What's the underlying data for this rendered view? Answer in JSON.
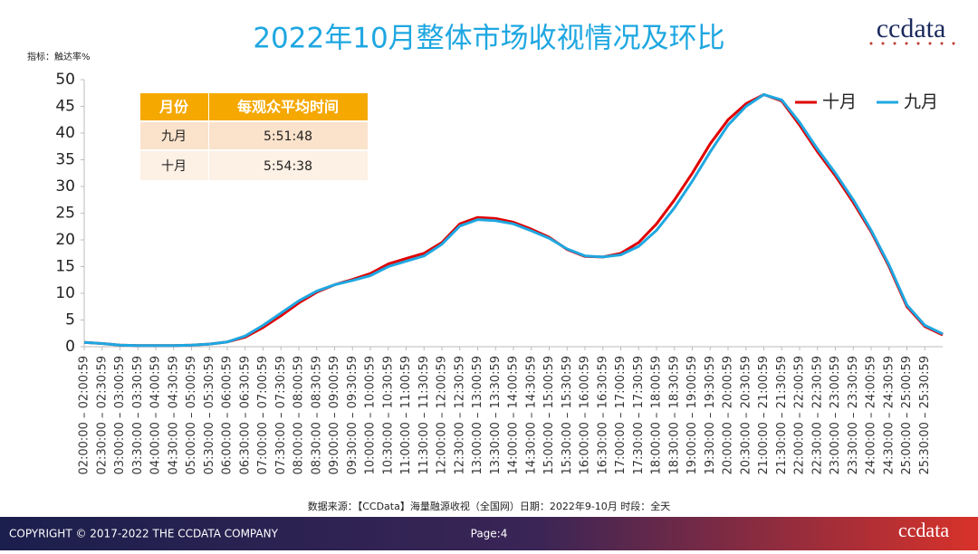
{
  "chart_data": {
    "type": "line",
    "title": "2022年10月整体市场收视情况及环比",
    "y_label": "指标：触达率%",
    "categories": [
      "02:00:00 – 02:00:59",
      "02:30:00 – 02:30:59",
      "03:00:00 – 03:00:59",
      "03:30:00 – 03:30:59",
      "04:00:00 – 04:00:59",
      "04:30:00 – 04:30:59",
      "05:00:00 – 05:00:59",
      "05:30:00 – 05:30:59",
      "06:00:00 – 06:00:59",
      "06:30:00 – 06:30:59",
      "07:00:00 – 07:00:59",
      "07:30:00 – 07:30:59",
      "08:00:00 – 08:00:59",
      "08:30:00 – 08:30:59",
      "09:00:00 – 09:00:59",
      "09:30:00 – 09:30:59",
      "10:00:00 – 10:00:59",
      "10:30:00 – 10:30:59",
      "11:00:00 – 11:00:59",
      "11:30:00 – 11:30:59",
      "12:00:00 – 12:00:59",
      "12:30:00 – 12:30:59",
      "13:00:00 – 13:00:59",
      "13:30:00 – 13:30:59",
      "14:00:00 – 14:00:59",
      "14:30:00 – 14:30:59",
      "15:00:00 – 15:00:59",
      "15:30:00 – 15:30:59",
      "16:00:00 – 16:00:59",
      "16:30:00 – 16:30:59",
      "17:00:00 – 17:00:59",
      "17:30:00 – 17:30:59",
      "18:00:00 – 18:00:59",
      "18:30:00 – 18:30:59",
      "19:00:00 – 19:00:59",
      "19:30:00 – 19:30:59",
      "20:00:00 – 20:00:59",
      "20:30:00 – 20:30:59",
      "21:00:00 – 21:00:59",
      "21:30:00 – 21:30:59",
      "22:00:00 – 22:00:59",
      "22:30:00 – 22:30:59",
      "23:00:00 – 23:00:59",
      "23:30:00 – 23:30:59",
      "24:00:00 – 24:00:59",
      "24:30:00 – 24:30:59",
      "25:00:00 – 25:00:59",
      "25:30:00 – 25:30:59",
      null
    ],
    "series": [
      {
        "name": "十月",
        "color": "#e00000",
        "values": [
          0.8,
          0.6,
          0.3,
          0.2,
          0.2,
          0.2,
          0.3,
          0.5,
          0.9,
          1.8,
          3.6,
          5.8,
          8.2,
          10.2,
          11.6,
          12.6,
          13.7,
          15.5,
          16.5,
          17.5,
          19.5,
          23.0,
          24.2,
          24.0,
          23.3,
          22.0,
          20.5,
          18.2,
          16.9,
          16.8,
          17.5,
          19.5,
          23.0,
          27.5,
          32.5,
          38.0,
          42.5,
          45.5,
          47.2,
          46.0,
          41.5,
          36.5,
          32.0,
          27.0,
          21.5,
          15.0,
          7.5,
          3.8,
          2.2
        ]
      },
      {
        "name": "九月",
        "color": "#1ea7e1",
        "values": [
          0.8,
          0.6,
          0.3,
          0.2,
          0.2,
          0.2,
          0.3,
          0.5,
          0.9,
          2.0,
          4.0,
          6.3,
          8.6,
          10.4,
          11.6,
          12.4,
          13.3,
          15.0,
          16.0,
          17.0,
          19.2,
          22.6,
          23.8,
          23.6,
          23.0,
          21.7,
          20.3,
          18.3,
          17.0,
          16.8,
          17.2,
          18.8,
          21.8,
          26.0,
          31.0,
          36.5,
          41.5,
          45.0,
          47.2,
          46.2,
          42.0,
          37.0,
          32.5,
          27.5,
          21.8,
          15.3,
          7.8,
          4.0,
          2.4
        ]
      }
    ],
    "ylim": [
      0,
      50
    ],
    "yticks": [
      0,
      5,
      10,
      15,
      20,
      25,
      30,
      35,
      40,
      45,
      50
    ],
    "grid": false,
    "legend": "top-right",
    "source": "数据来源：【CCData】海量融源收视（全国网）日期：2022年9-10月 时段：全天"
  },
  "table": {
    "header": [
      "月份",
      "每观众平均时间"
    ],
    "rows": [
      [
        "九月",
        "5:51:48"
      ],
      [
        "十月",
        "5:54:38"
      ]
    ]
  },
  "logo": "ccdata",
  "footer": {
    "copyright": "COPYRIGHT © 2017-2022 THE CCDATA COMPANY",
    "page": "Page:4",
    "logo": "ccdata"
  }
}
